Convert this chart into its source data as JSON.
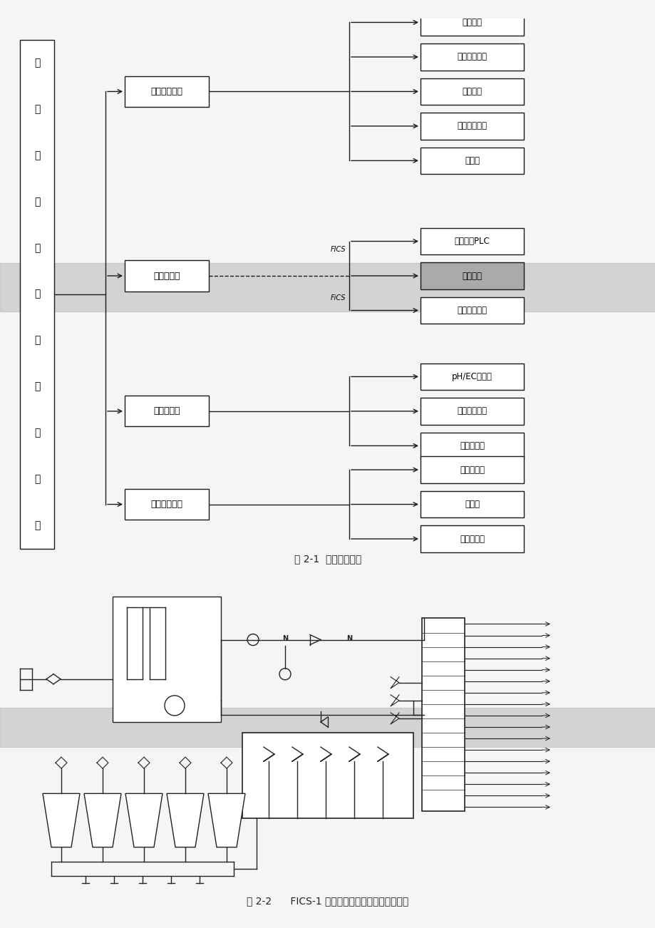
{
  "page_bg": "#f5f5f5",
  "fig1_caption": "图 2-1  系统构成框图",
  "fig2_caption": "图 2-2      FICS-1 型温室滴灌施肥智能化控制系统",
  "left_box_chars": [
    "温",
    "室",
    "滴",
    "灌",
    "施",
    "肥",
    "智",
    "能",
    "化",
    "控",
    "制"
  ],
  "left_box_extra": "制",
  "mid_boxes": [
    "首部管路系统",
    "控制计算机",
    "一次传感器",
    "田间滴灌系统"
  ],
  "group0_items": [
    "过滤装置",
    "灌溉控制管路",
    "计量设备",
    "混肥控制管路",
    "营养液"
  ],
  "group1_items": [
    "触摸屏和PLC",
    "控制软件",
    "工控机和板卡"
  ],
  "group2_items": [
    "pH/EC传感器",
    "土壤水势传感",
    "其他传感器"
  ],
  "group3_items": [
    "干、支管道",
    "滴灌带",
    "田间电磁阀"
  ],
  "highlight_color": "#b8b8b8",
  "box_fill": "#ffffff",
  "ctrl_software_fill": "#aaaaaa",
  "line_color": "#1a1a1a",
  "text_color": "#111111",
  "caption_color": "#222222"
}
